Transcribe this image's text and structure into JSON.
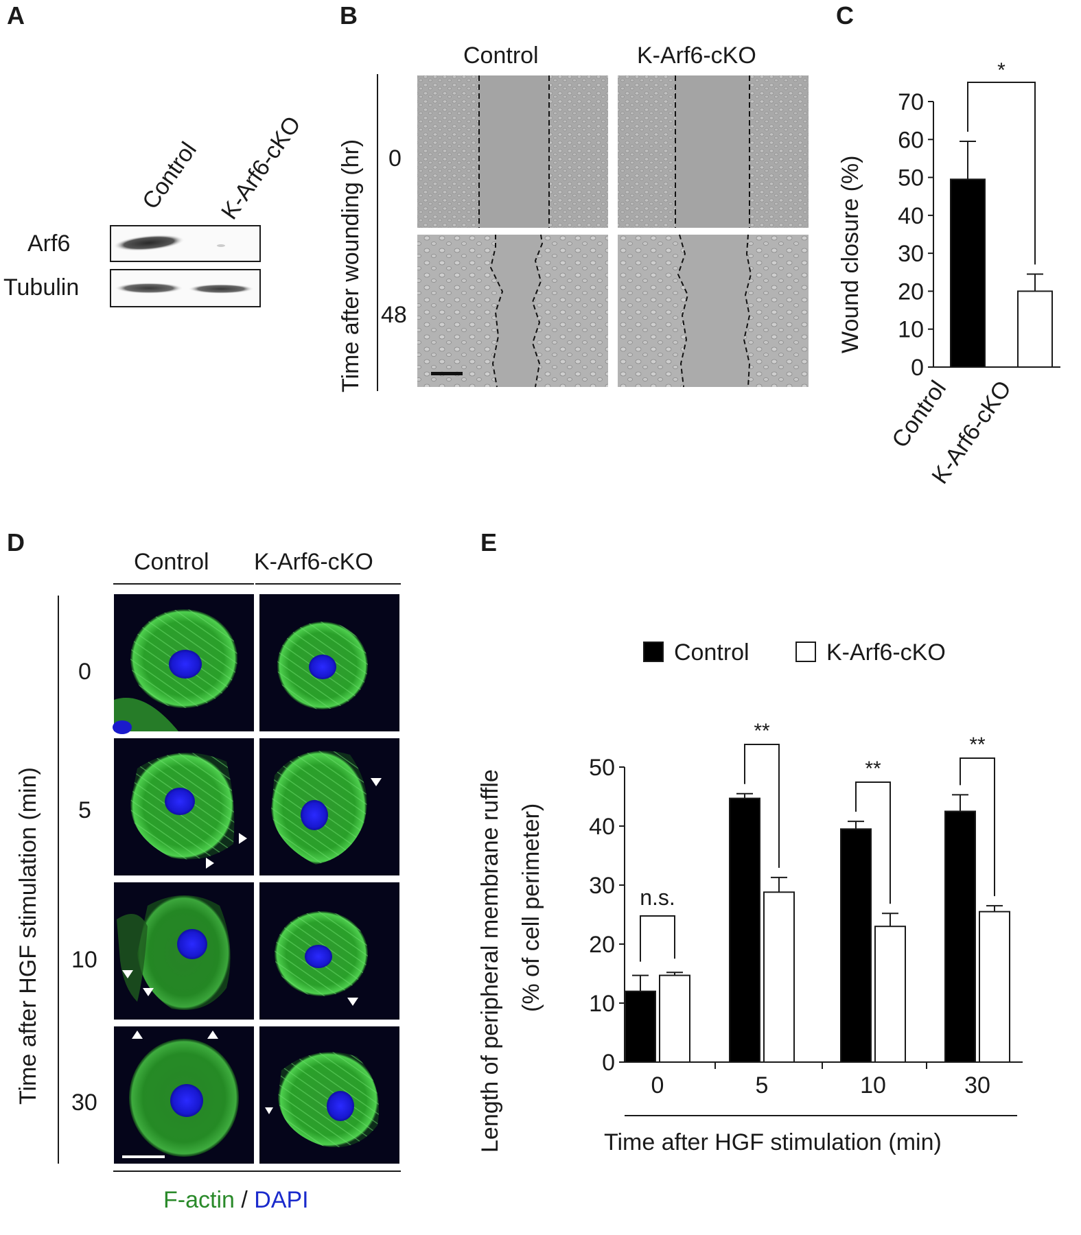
{
  "panels": {
    "A": {
      "letter": "A",
      "lanes": [
        "Control",
        "K-Arf6-cKO"
      ],
      "rows": [
        "Arf6",
        "Tubulin"
      ]
    },
    "B": {
      "letter": "B",
      "columns": [
        "Control",
        "K-Arf6-cKO"
      ],
      "time_axis_label": "Time after wounding (hr)",
      "time_points": [
        "0",
        "48"
      ]
    },
    "C": {
      "letter": "C",
      "significance": "*"
    },
    "D": {
      "letter": "D",
      "columns": [
        "Control",
        "K-Arf6-cKO"
      ],
      "time_axis_label": "Time after HGF stimulation (min)",
      "time_points": [
        "0",
        "5",
        "10",
        "30"
      ],
      "stain_label_1": "F-actin",
      "stain_separator": " / ",
      "stain_label_2": "DAPI",
      "stain_color_1": "#2a8a2a",
      "stain_color_2": "#1a2acc"
    },
    "E": {
      "letter": "E"
    }
  },
  "chart_data": [
    {
      "panel": "C",
      "type": "bar",
      "categories": [
        "Control",
        "K-Arf6-cKO"
      ],
      "values": [
        49.5,
        20
      ],
      "errors": [
        10,
        4.5
      ],
      "bar_colors": [
        "#000000",
        "#ffffff"
      ],
      "ylabel": "Wound closure (%)",
      "ylim": [
        0,
        70
      ],
      "yticks": [
        0,
        10,
        20,
        30,
        40,
        50,
        60,
        70
      ],
      "annotations": [
        {
          "between": [
            "Control",
            "K-Arf6-cKO"
          ],
          "text": "*"
        }
      ]
    },
    {
      "panel": "E",
      "type": "bar",
      "categories": [
        "0",
        "5",
        "10",
        "30"
      ],
      "series": [
        {
          "name": "Control",
          "color": "#000000",
          "values": [
            12,
            44.7,
            39.5,
            42.5
          ],
          "errors": [
            2.7,
            0.8,
            1.3,
            2.8
          ]
        },
        {
          "name": "K-Arf6-cKO",
          "color": "#ffffff",
          "values": [
            14.7,
            28.8,
            23,
            25.5
          ],
          "errors": [
            0.5,
            2.5,
            2.2,
            1.0
          ]
        }
      ],
      "ylabel": "Length of peripheral membrane ruffle",
      "ylabel2": "(% of cell perimeter)",
      "xlabel": "Time after HGF stimulation (min)",
      "ylim": [
        0,
        50
      ],
      "yticks": [
        0,
        10,
        20,
        30,
        40,
        50
      ],
      "legend": "top",
      "annotations": [
        "n.s.",
        "**",
        "**",
        "**"
      ]
    }
  ]
}
